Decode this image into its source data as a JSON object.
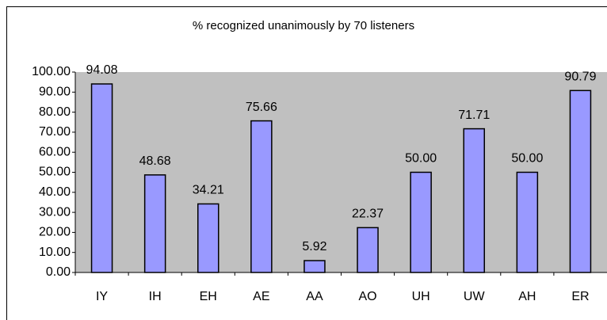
{
  "chart_data": {
    "type": "bar",
    "title": "% recognized unanimously by 70 listeners",
    "categories": [
      "IY",
      "IH",
      "EH",
      "AE",
      "AA",
      "AO",
      "UH",
      "UW",
      "AH",
      "ER"
    ],
    "values": [
      94.08,
      48.68,
      34.21,
      75.66,
      5.92,
      22.37,
      50,
      71.71,
      50,
      90.79
    ],
    "value_labels": [
      "94.08",
      "48.68",
      "34.21",
      "75.66",
      "5.92",
      "22.37",
      "50.00",
      "71.71",
      "50.00",
      "90.79"
    ],
    "color": "#9999ff",
    "ylim": [
      0,
      100
    ],
    "yticks": [
      {
        "value": 0,
        "label": "0.00"
      },
      {
        "value": 10,
        "label": "10.00"
      },
      {
        "value": 20,
        "label": "20.00"
      },
      {
        "value": 30,
        "label": "30.00"
      },
      {
        "value": 40,
        "label": "40.00"
      },
      {
        "value": 50,
        "label": "50.00"
      },
      {
        "value": 60,
        "label": "60.00"
      },
      {
        "value": 70,
        "label": "70.00"
      },
      {
        "value": 80,
        "label": "80.00"
      },
      {
        "value": 90,
        "label": "90.00"
      },
      {
        "value": 100,
        "label": "100.00"
      }
    ],
    "grid": false
  }
}
